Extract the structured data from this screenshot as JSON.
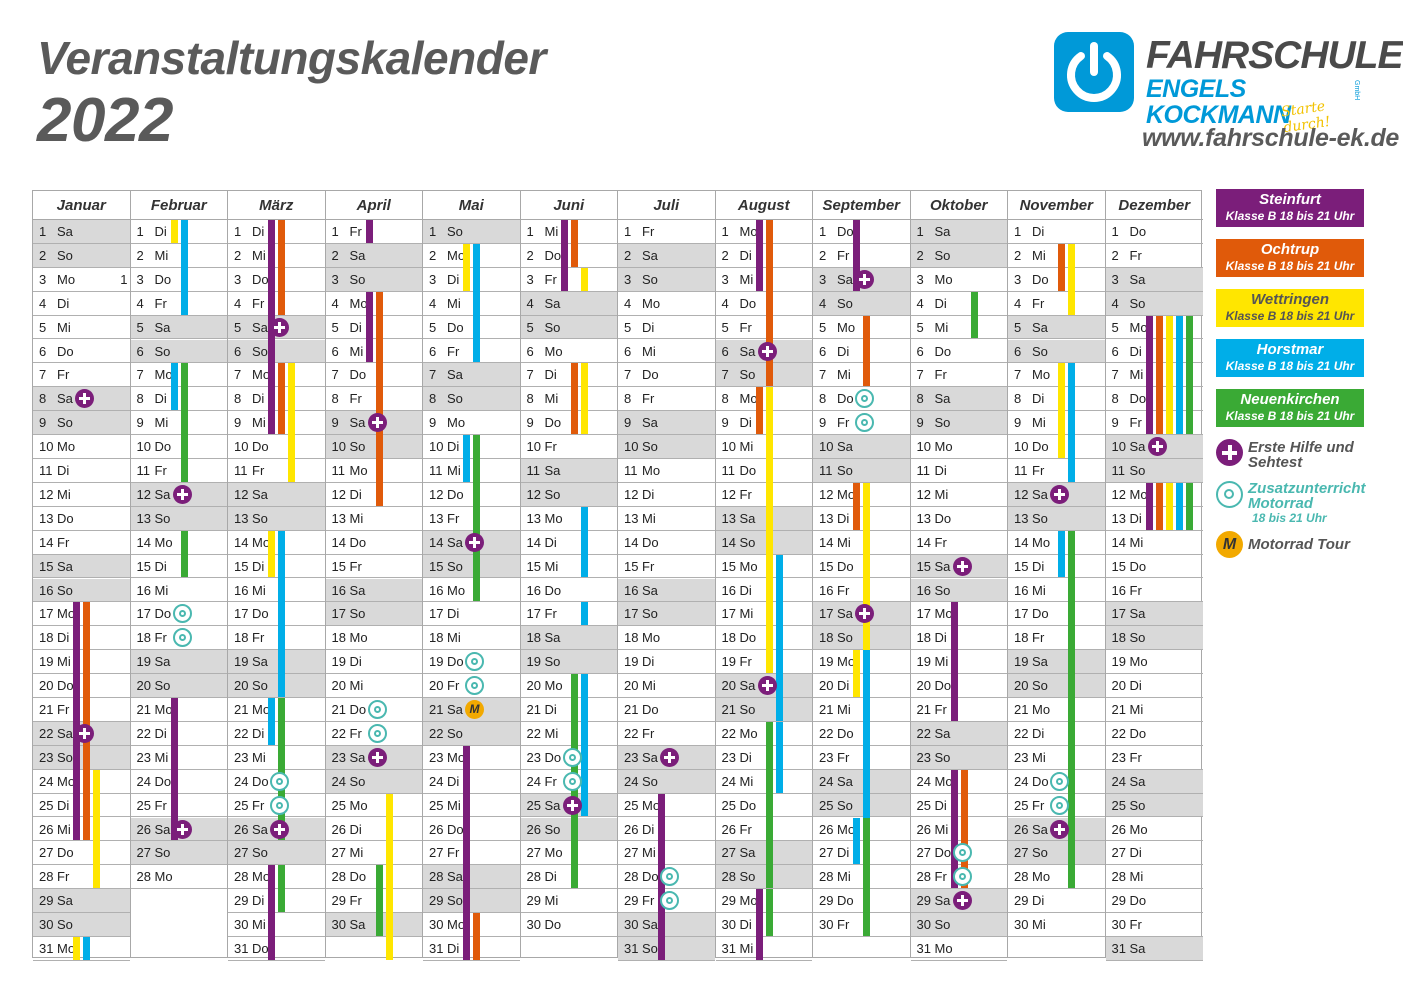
{
  "title": "Veranstaltungskalender",
  "year": "2022",
  "logo": {
    "brand_line1": "FAHRSCHULE",
    "brand_line2": "ENGELS KOCKMANN",
    "gmbh": "GmbH",
    "slogan": "Starte durch!",
    "icon": "power-icon"
  },
  "url": "www.fahrschule-ek.de",
  "colors": {
    "steinfurt": "#7b1e7a",
    "ochtrup": "#e05a0a",
    "wettringen": "#ffe600",
    "horstmar": "#00aee8",
    "neuenkirchen": "#3aaa35",
    "weekend": "#d9d9d9",
    "zusatz": "#4ab8b0",
    "tour": "#f2a900"
  },
  "months": [
    {
      "name": "Januar",
      "start": 6,
      "days": 31
    },
    {
      "name": "Februar",
      "start": 2,
      "days": 28
    },
    {
      "name": "März",
      "start": 2,
      "days": 31
    },
    {
      "name": "April",
      "start": 5,
      "days": 30
    },
    {
      "name": "Mai",
      "start": 0,
      "days": 31
    },
    {
      "name": "Juni",
      "start": 3,
      "days": 30
    },
    {
      "name": "Juli",
      "start": 5,
      "days": 31
    },
    {
      "name": "August",
      "start": 1,
      "days": 31
    },
    {
      "name": "September",
      "start": 4,
      "days": 30
    },
    {
      "name": "Oktober",
      "start": 6,
      "days": 31
    },
    {
      "name": "November",
      "start": 2,
      "days": 30
    },
    {
      "name": "Dezember",
      "start": 4,
      "days": 31
    }
  ],
  "weekday_abbr": [
    "So",
    "Mo",
    "Di",
    "Mi",
    "Do",
    "Fr",
    "Sa"
  ],
  "extra_mark": {
    "month": 0,
    "day": 3,
    "text": "1"
  },
  "bars": [
    [
      0,
      17,
      26,
      "ochtrup",
      1
    ],
    [
      0,
      17,
      26,
      "steinfurt",
      0
    ],
    [
      0,
      24,
      28,
      "wettringen",
      2
    ],
    [
      0,
      24,
      25,
      "ochtrup",
      1
    ],
    [
      0,
      24,
      25,
      "steinfurt",
      0
    ],
    [
      0,
      31,
      31,
      "wettringen",
      0
    ],
    [
      0,
      31,
      31,
      "horstmar",
      1
    ],
    [
      1,
      1,
      1,
      "wettringen",
      0
    ],
    [
      1,
      1,
      4,
      "horstmar",
      1
    ],
    [
      1,
      7,
      8,
      "horstmar",
      0
    ],
    [
      1,
      7,
      11,
      "neuenkirchen",
      1
    ],
    [
      1,
      14,
      15,
      "neuenkirchen",
      1
    ],
    [
      1,
      21,
      26,
      "steinfurt",
      0
    ],
    [
      2,
      1,
      9,
      "steinfurt",
      0
    ],
    [
      2,
      1,
      4,
      "ochtrup",
      1
    ],
    [
      2,
      7,
      9,
      "ochtrup",
      1
    ],
    [
      2,
      7,
      11,
      "wettringen",
      2
    ],
    [
      2,
      14,
      15,
      "wettringen",
      0
    ],
    [
      2,
      14,
      20,
      "horstmar",
      1
    ],
    [
      2,
      21,
      22,
      "horstmar",
      0
    ],
    [
      2,
      21,
      26,
      "neuenkirchen",
      1
    ],
    [
      2,
      28,
      31,
      "steinfurt",
      0
    ],
    [
      2,
      28,
      29,
      "neuenkirchen",
      1
    ],
    [
      3,
      1,
      1,
      "steinfurt",
      0
    ],
    [
      3,
      4,
      6,
      "steinfurt",
      0
    ],
    [
      3,
      4,
      12,
      "ochtrup",
      1
    ],
    [
      3,
      25,
      31,
      "wettringen",
      2
    ],
    [
      3,
      28,
      30,
      "neuenkirchen",
      1
    ],
    [
      4,
      2,
      3,
      "wettringen",
      0
    ],
    [
      4,
      2,
      6,
      "horstmar",
      1
    ],
    [
      4,
      10,
      11,
      "horstmar",
      0
    ],
    [
      4,
      10,
      16,
      "neuenkirchen",
      1
    ],
    [
      4,
      23,
      31,
      "steinfurt",
      0
    ],
    [
      4,
      30,
      31,
      "ochtrup",
      1
    ],
    [
      5,
      1,
      3,
      "steinfurt",
      0
    ],
    [
      5,
      1,
      2,
      "ochtrup",
      1
    ],
    [
      5,
      3,
      3,
      "wettringen",
      2
    ],
    [
      5,
      7,
      9,
      "ochtrup",
      1
    ],
    [
      5,
      7,
      9,
      "wettringen",
      2
    ],
    [
      5,
      13,
      15,
      "horstmar",
      2
    ],
    [
      5,
      17,
      17,
      "horstmar",
      2
    ],
    [
      5,
      20,
      25,
      "horstmar",
      2
    ],
    [
      5,
      20,
      28,
      "neuenkirchen",
      1
    ],
    [
      6,
      25,
      31,
      "steinfurt",
      0
    ],
    [
      7,
      1,
      3,
      "steinfurt",
      0
    ],
    [
      7,
      1,
      7,
      "ochtrup",
      1
    ],
    [
      7,
      8,
      9,
      "ochtrup",
      0
    ],
    [
      7,
      8,
      19,
      "wettringen",
      1
    ],
    [
      7,
      15,
      21,
      "horstmar",
      2
    ],
    [
      7,
      22,
      24,
      "horstmar",
      2
    ],
    [
      7,
      22,
      28,
      "neuenkirchen",
      1
    ],
    [
      7,
      29,
      31,
      "steinfurt",
      0
    ],
    [
      7,
      29,
      30,
      "neuenkirchen",
      1
    ],
    [
      8,
      1,
      3,
      "steinfurt",
      0
    ],
    [
      8,
      5,
      7,
      "ochtrup",
      1
    ],
    [
      8,
      12,
      13,
      "ochtrup",
      0
    ],
    [
      8,
      12,
      20,
      "wettringen",
      1
    ],
    [
      8,
      19,
      20,
      "wettringen",
      0
    ],
    [
      8,
      19,
      26,
      "horstmar",
      1
    ],
    [
      8,
      26,
      27,
      "horstmar",
      0
    ],
    [
      8,
      26,
      30,
      "neuenkirchen",
      1
    ],
    [
      9,
      4,
      5,
      "neuenkirchen",
      2
    ],
    [
      9,
      17,
      21,
      "steinfurt",
      0
    ],
    [
      9,
      24,
      28,
      "ochtrup",
      1
    ],
    [
      9,
      24,
      28,
      "steinfurt",
      0
    ],
    [
      10,
      2,
      3,
      "ochtrup",
      1
    ],
    [
      10,
      2,
      4,
      "wettringen",
      2
    ],
    [
      10,
      7,
      10,
      "wettringen",
      1
    ],
    [
      10,
      7,
      11,
      "horstmar",
      2
    ],
    [
      10,
      14,
      15,
      "horstmar",
      1
    ],
    [
      10,
      14,
      28,
      "neuenkirchen",
      2
    ],
    [
      11,
      5,
      9,
      "steinfurt",
      0
    ],
    [
      11,
      5,
      9,
      "ochtrup",
      1
    ],
    [
      11,
      5,
      9,
      "wettringen",
      2
    ],
    [
      11,
      5,
      9,
      "horstmar",
      3
    ],
    [
      11,
      5,
      9,
      "neuenkirchen",
      4
    ],
    [
      11,
      12,
      13,
      "steinfurt",
      0
    ],
    [
      11,
      12,
      13,
      "ochtrup",
      1
    ],
    [
      11,
      12,
      13,
      "wettringen",
      2
    ],
    [
      11,
      12,
      13,
      "horstmar",
      3
    ],
    [
      11,
      12,
      13,
      "neuenkirchen",
      4
    ]
  ],
  "crosses": [
    [
      0,
      8
    ],
    [
      0,
      22
    ],
    [
      1,
      12
    ],
    [
      1,
      26
    ],
    [
      2,
      5
    ],
    [
      2,
      26
    ],
    [
      3,
      9
    ],
    [
      3,
      23
    ],
    [
      4,
      14
    ],
    [
      5,
      25
    ],
    [
      6,
      23
    ],
    [
      7,
      6
    ],
    [
      7,
      20
    ],
    [
      8,
      3
    ],
    [
      8,
      17
    ],
    [
      9,
      15
    ],
    [
      9,
      29
    ],
    [
      10,
      12
    ],
    [
      10,
      26
    ],
    [
      11,
      10
    ]
  ],
  "motos": [
    [
      1,
      17
    ],
    [
      1,
      18
    ],
    [
      2,
      24
    ],
    [
      2,
      25
    ],
    [
      3,
      21
    ],
    [
      3,
      22
    ],
    [
      4,
      19
    ],
    [
      4,
      20
    ],
    [
      5,
      23
    ],
    [
      5,
      24
    ],
    [
      6,
      28
    ],
    [
      6,
      29
    ],
    [
      8,
      8
    ],
    [
      8,
      9
    ],
    [
      9,
      27
    ],
    [
      9,
      28
    ],
    [
      10,
      24
    ],
    [
      10,
      25
    ]
  ],
  "tours": [
    [
      4,
      21,
      "M"
    ]
  ],
  "legend": {
    "locations": [
      {
        "name": "Steinfurt",
        "time": "Klasse B 18 bis 21 Uhr",
        "color": "#7b1e7a",
        "text": "#ffffff"
      },
      {
        "name": "Ochtrup",
        "time": "Klasse B 18 bis 21 Uhr",
        "color": "#e05a0a",
        "text": "#ffffff"
      },
      {
        "name": "Wettringen",
        "time": "Klasse B 18 bis 21 Uhr",
        "color": "#ffe600",
        "text": "#555555"
      },
      {
        "name": "Horstmar",
        "time": "Klasse B 18 bis 21 Uhr",
        "color": "#00aee8",
        "text": "#ffffff"
      },
      {
        "name": "Neuenkirchen",
        "time": "Klasse B 18 bis 21 Uhr",
        "color": "#3aaa35",
        "text": "#ffffff"
      }
    ],
    "erste_hilfe": "Erste Hilfe und Sehtest",
    "zusatz_line1": "Zusatzunterricht",
    "zusatz_line2": "Motorrad",
    "zusatz_time": "18 bis 21 Uhr",
    "tour_symbol": "M",
    "tour_label": "Motorrad Tour"
  }
}
